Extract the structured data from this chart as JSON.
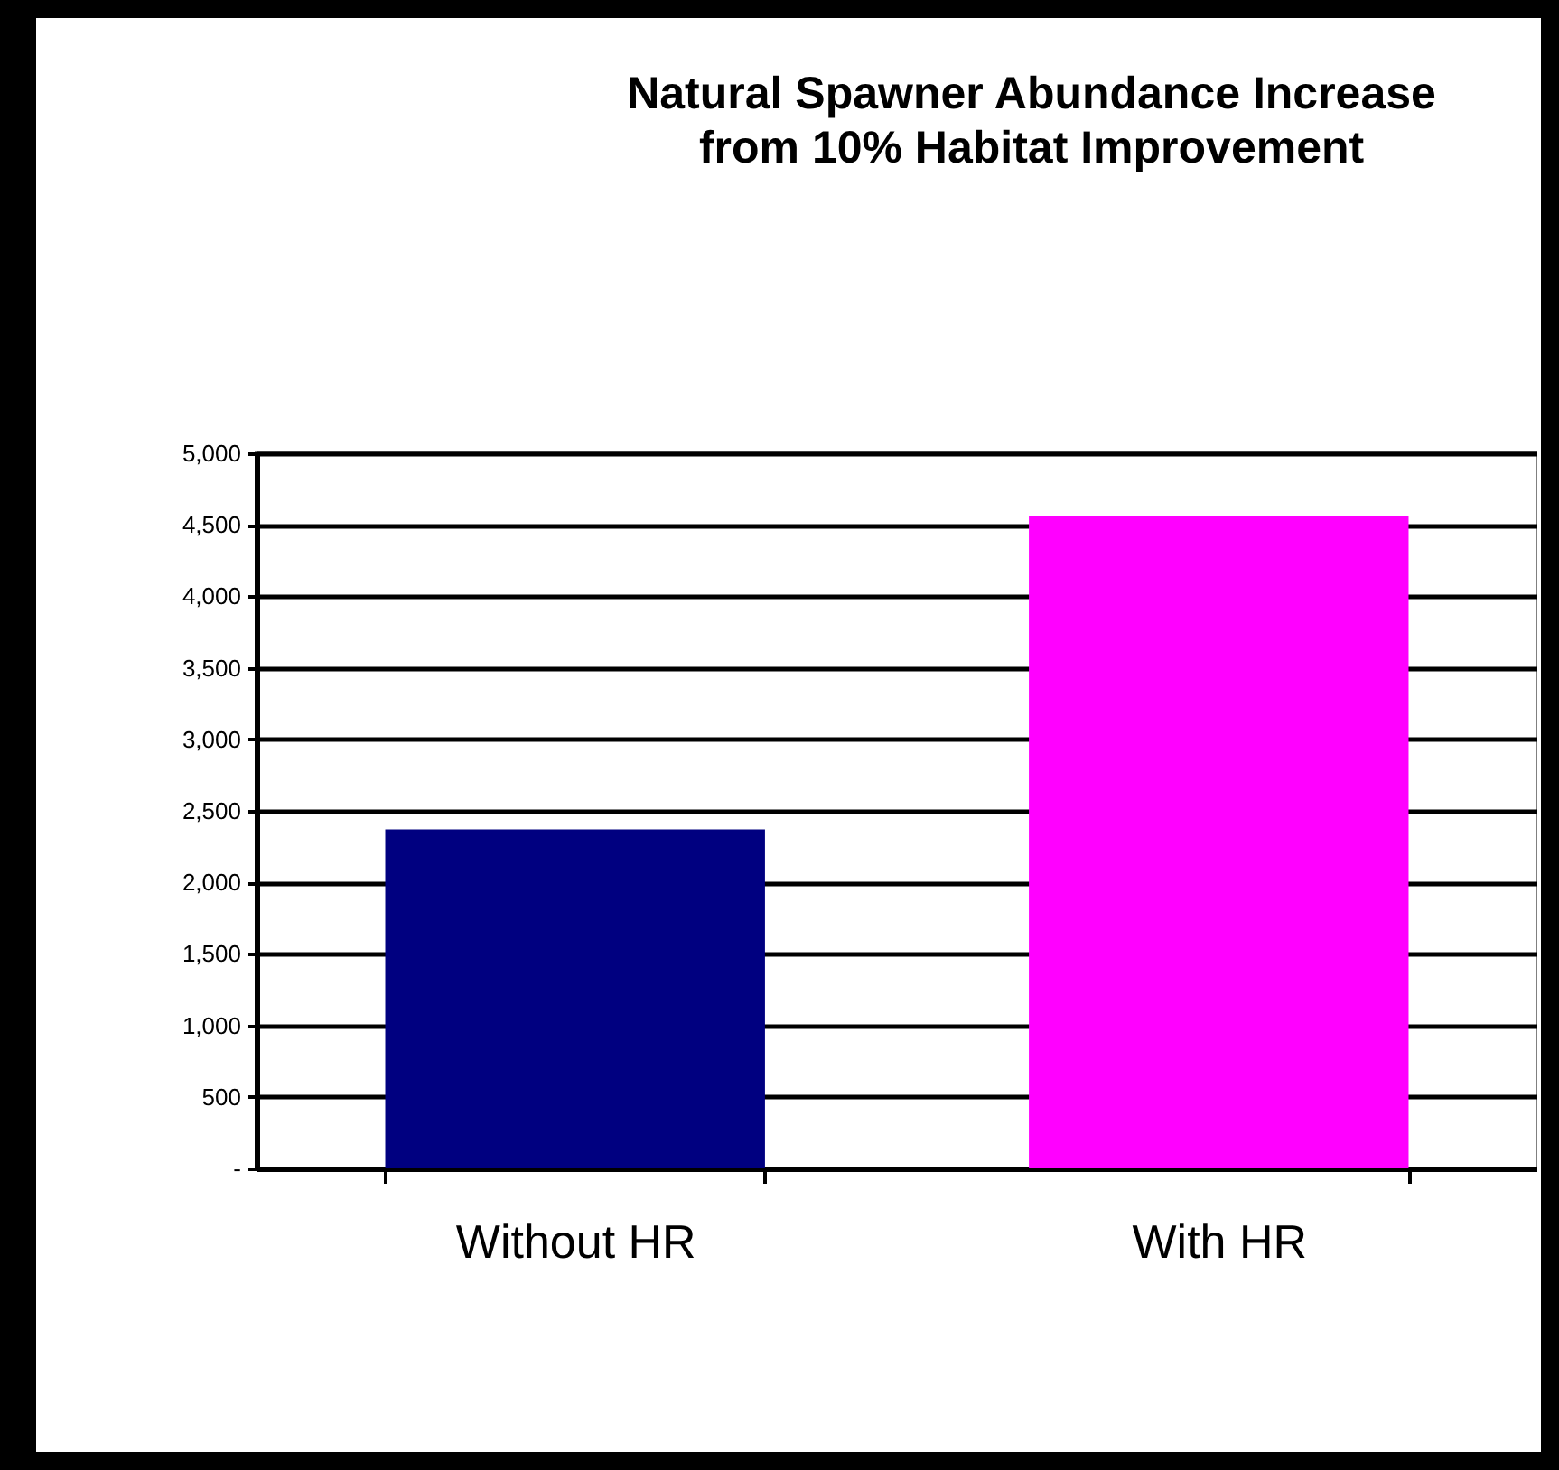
{
  "chart_data": {
    "type": "bar",
    "title": [
      "Natural Spawner Abundance Increase",
      "from 10% Habitat Improvement"
    ],
    "categories": [
      "Without HR",
      "With HR"
    ],
    "values": [
      2370,
      4560
    ],
    "colors": [
      "#000080",
      "#ff00ff"
    ],
    "ylim": [
      0,
      5000
    ],
    "yticks": [
      {
        "value": 0,
        "label": "-"
      },
      {
        "value": 500,
        "label": "500"
      },
      {
        "value": 1000,
        "label": "1,000"
      },
      {
        "value": 1500,
        "label": "1,500"
      },
      {
        "value": 2000,
        "label": "2,000"
      },
      {
        "value": 2500,
        "label": "2,500"
      },
      {
        "value": 3000,
        "label": "3,000"
      },
      {
        "value": 3500,
        "label": "3,500"
      },
      {
        "value": 4000,
        "label": "4,000"
      },
      {
        "value": 4500,
        "label": "4,500"
      },
      {
        "value": 5000,
        "label": "5,000"
      }
    ],
    "grid": "y"
  }
}
